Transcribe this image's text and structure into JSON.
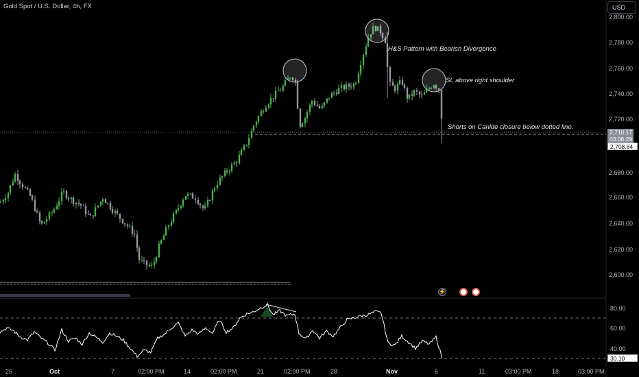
{
  "header": {
    "title": "Gold Spot / U.S. Dollar, 4h, FX",
    "currency_button": "USD"
  },
  "annotations": {
    "pattern": "H&S Pattern with Bearish Divergence",
    "stop_loss": "SL above right shoulder",
    "entry": "Shorts on Canlde closure below dotted line."
  },
  "price_tags": {
    "last_price": "2,710.17",
    "countdown": "03:06:29",
    "level": "2,708.84"
  },
  "oscillator": {
    "value_tag": "30.10",
    "y_ticks": [
      "80.00",
      "60.00",
      "40.00"
    ]
  },
  "x_axis_labels": [
    "26",
    "Oct",
    "7",
    "02:00 PM",
    "14",
    "02:00 PM",
    "21",
    "02:00 PM",
    "28",
    "Nov",
    "6",
    "11",
    "03:00 PM",
    "18",
    "03:00 PM"
  ],
  "colors": {
    "up": "#4caf50",
    "down": "#9598a1",
    "background": "#000000",
    "text": "#d1d4dc"
  },
  "event_icons": [
    "lightning-icon",
    "us-flag-icon",
    "us-flag-icon"
  ],
  "chart_data": [
    {
      "type": "candlestick",
      "title": "Gold Spot / U.S. Dollar, 4h, FX",
      "x_ticks": [
        "26",
        "Oct",
        "7",
        "02:00 PM",
        "14",
        "02:00 PM",
        "21",
        "02:00 PM",
        "28",
        "Nov",
        "6",
        "11",
        "03:00 PM",
        "18",
        "03:00 PM"
      ],
      "y_ticks": [
        2800,
        2780,
        2760,
        2740,
        2720,
        2700,
        2680,
        2660,
        2640,
        2620,
        2600
      ],
      "ylim": [
        2591,
        2814
      ],
      "grid": false,
      "key_levels": {
        "neckline": 2708.84,
        "support": 2602
      },
      "last_price": 2710.17,
      "price_waypoints": [
        [
          0,
          2656
        ],
        [
          12,
          2664
        ],
        [
          22,
          2678
        ],
        [
          32,
          2670
        ],
        [
          45,
          2660
        ],
        [
          60,
          2638
        ],
        [
          78,
          2650
        ],
        [
          92,
          2664
        ],
        [
          105,
          2658
        ],
        [
          118,
          2654
        ],
        [
          132,
          2644
        ],
        [
          150,
          2660
        ],
        [
          165,
          2650
        ],
        [
          182,
          2640
        ],
        [
          196,
          2632
        ],
        [
          203,
          2612
        ],
        [
          212,
          2608
        ],
        [
          222,
          2606
        ],
        [
          232,
          2622
        ],
        [
          245,
          2638
        ],
        [
          258,
          2650
        ],
        [
          270,
          2662
        ],
        [
          285,
          2660
        ],
        [
          298,
          2650
        ],
        [
          315,
          2670
        ],
        [
          330,
          2680
        ],
        [
          345,
          2688
        ],
        [
          358,
          2700
        ],
        [
          372,
          2718
        ],
        [
          388,
          2732
        ],
        [
          402,
          2740
        ],
        [
          412,
          2745
        ],
        [
          425,
          2755
        ],
        [
          432,
          2748
        ],
        [
          436,
          2715
        ],
        [
          445,
          2722
        ],
        [
          455,
          2735
        ],
        [
          468,
          2728
        ],
        [
          480,
          2738
        ],
        [
          495,
          2744
        ],
        [
          508,
          2746
        ],
        [
          518,
          2748
        ],
        [
          528,
          2768
        ],
        [
          538,
          2786
        ],
        [
          546,
          2792
        ],
        [
          556,
          2788
        ],
        [
          563,
          2780
        ],
        [
          567,
          2748
        ],
        [
          576,
          2744
        ],
        [
          586,
          2750
        ],
        [
          595,
          2736
        ],
        [
          605,
          2742
        ],
        [
          615,
          2738
        ],
        [
          625,
          2744
        ],
        [
          633,
          2748
        ],
        [
          640,
          2744
        ],
        [
          645,
          2714
        ]
      ],
      "spikes": [
        {
          "x": 436,
          "low": 2708
        },
        {
          "x": 566,
          "high": 2788,
          "low": 2737
        },
        {
          "x": 645,
          "low": 2702
        }
      ]
    },
    {
      "type": "line",
      "title": "RSI",
      "y_ticks": [
        80,
        60,
        40
      ],
      "bands": [
        70,
        30
      ],
      "ylim": [
        28,
        88
      ],
      "last_value": 30.1,
      "waypoints": [
        [
          0,
          56
        ],
        [
          10,
          60
        ],
        [
          20,
          57
        ],
        [
          28,
          52
        ],
        [
          40,
          48
        ],
        [
          50,
          56
        ],
        [
          60,
          50
        ],
        [
          70,
          45
        ],
        [
          80,
          38
        ],
        [
          90,
          58
        ],
        [
          100,
          47
        ],
        [
          110,
          50
        ],
        [
          120,
          44
        ],
        [
          130,
          55
        ],
        [
          140,
          51
        ],
        [
          150,
          46
        ],
        [
          160,
          55
        ],
        [
          170,
          52
        ],
        [
          180,
          48
        ],
        [
          190,
          40
        ],
        [
          200,
          32
        ],
        [
          210,
          38
        ],
        [
          220,
          36
        ],
        [
          230,
          50
        ],
        [
          240,
          54
        ],
        [
          250,
          60
        ],
        [
          260,
          65
        ],
        [
          270,
          52
        ],
        [
          280,
          58
        ],
        [
          290,
          54
        ],
        [
          300,
          60
        ],
        [
          310,
          55
        ],
        [
          320,
          68
        ],
        [
          330,
          56
        ],
        [
          340,
          60
        ],
        [
          350,
          70
        ],
        [
          360,
          74
        ],
        [
          370,
          76
        ],
        [
          380,
          80
        ],
        [
          390,
          83
        ],
        [
          398,
          73
        ],
        [
          408,
          77
        ],
        [
          418,
          72
        ],
        [
          430,
          74
        ],
        [
          436,
          55
        ],
        [
          446,
          49
        ],
        [
          456,
          58
        ],
        [
          466,
          50
        ],
        [
          476,
          57
        ],
        [
          486,
          52
        ],
        [
          496,
          60
        ],
        [
          506,
          68
        ],
        [
          516,
          70
        ],
        [
          526,
          72
        ],
        [
          536,
          73
        ],
        [
          548,
          76
        ],
        [
          556,
          75
        ],
        [
          566,
          45
        ],
        [
          576,
          43
        ],
        [
          586,
          52
        ],
        [
          596,
          46
        ],
        [
          606,
          40
        ],
        [
          616,
          47
        ],
        [
          626,
          44
        ],
        [
          636,
          51
        ],
        [
          645,
          30
        ]
      ]
    }
  ]
}
